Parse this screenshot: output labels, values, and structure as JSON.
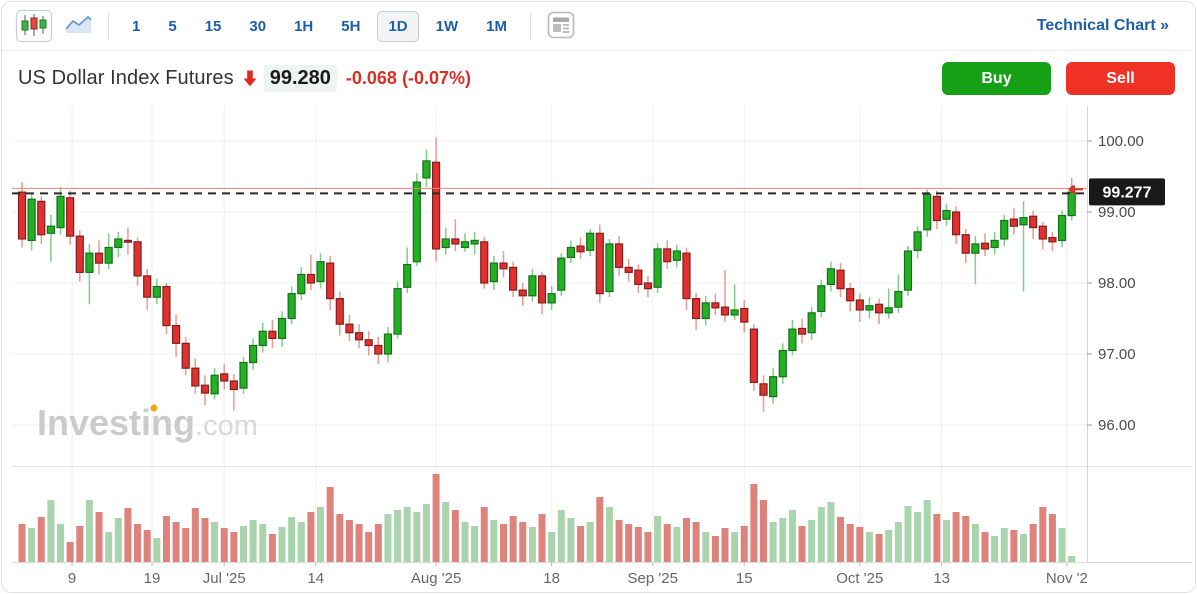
{
  "toolbar": {
    "chart_type_candlestick": {
      "name": "candlestick-chart",
      "selected": true
    },
    "chart_type_area": {
      "name": "area-chart",
      "selected": false
    },
    "intervals": [
      {
        "label": "1",
        "selected": false
      },
      {
        "label": "5",
        "selected": false
      },
      {
        "label": "15",
        "selected": false
      },
      {
        "label": "30",
        "selected": false
      },
      {
        "label": "1H",
        "selected": false
      },
      {
        "label": "5H",
        "selected": false
      },
      {
        "label": "1D",
        "selected": true
      },
      {
        "label": "1W",
        "selected": false
      },
      {
        "label": "1M",
        "selected": false
      }
    ],
    "technical_chart_label": "Technical Chart",
    "technical_chart_arrow": "»"
  },
  "header": {
    "title": "US Dollar Index Futures",
    "direction": "down",
    "price": "99.280",
    "change": "-0.068",
    "change_percent": "(-0.07%)",
    "buy_label": "Buy",
    "sell_label": "Sell"
  },
  "watermark": {
    "brand": "Investing",
    "suffix": ".com"
  },
  "colors": {
    "up_fill": "#23b123",
    "up_stroke": "#14701a",
    "up_wick": "#7fcf87",
    "down_fill": "#e13030",
    "down_stroke": "#7e211c",
    "down_wick": "#eb9a90",
    "vol_up": "#a9d4ae",
    "vol_down": "#de827c",
    "accent_blue": "#1c5fa8",
    "buy_green": "#16a016",
    "sell_red": "#f03226",
    "current_line_red": "#ef837b",
    "dashed_line": "#2a2a2a",
    "price_label_bg": "#191919",
    "grid": "#efefef",
    "axis_text": "#4a4a4a",
    "date_text": "#666666"
  },
  "chart_data": {
    "type": "candlestick",
    "symbol": "US Dollar Index Futures",
    "interval": "1D",
    "current_price": {
      "value": 99.277,
      "label": "99.277"
    },
    "y_axis": {
      "ticks": [
        {
          "label": "100.00",
          "price": 100
        },
        {
          "label": "99.00",
          "price": 99
        },
        {
          "label": "98.00",
          "price": 98
        },
        {
          "label": "97.00",
          "price": 97
        },
        {
          "label": "96.00",
          "price": 96
        }
      ],
      "range": [
        95.5,
        100.5
      ]
    },
    "x_axis": {
      "ticks": [
        {
          "label": "9",
          "i": 5.2
        },
        {
          "label": "19",
          "i": 13.5
        },
        {
          "label": "Jul '25",
          "i": 21
        },
        {
          "label": "14",
          "i": 30.5
        },
        {
          "label": "Aug '25",
          "i": 43
        },
        {
          "label": "18",
          "i": 55
        },
        {
          "label": "Sep '25",
          "i": 65.5
        },
        {
          "label": "15",
          "i": 75
        },
        {
          "label": "Oct '25",
          "i": 87
        },
        {
          "label": "13",
          "i": 95.5
        },
        {
          "label": "Nov '2",
          "i": 108.5
        }
      ]
    },
    "candles": [
      [
        99.28,
        99.42,
        98.5,
        98.62
      ],
      [
        98.6,
        99.26,
        98.46,
        99.18
      ],
      [
        99.15,
        99.22,
        98.55,
        98.68
      ],
      [
        98.7,
        98.96,
        98.3,
        98.8
      ],
      [
        98.78,
        99.35,
        98.68,
        99.22
      ],
      [
        99.2,
        99.3,
        98.54,
        98.66
      ],
      [
        98.66,
        98.74,
        98.02,
        98.15
      ],
      [
        98.15,
        98.55,
        97.7,
        98.42
      ],
      [
        98.42,
        98.6,
        98.12,
        98.28
      ],
      [
        98.28,
        98.7,
        98.2,
        98.5
      ],
      [
        98.5,
        98.72,
        98.36,
        98.62
      ],
      [
        98.6,
        98.78,
        98.4,
        98.58
      ],
      [
        98.58,
        98.64,
        97.96,
        98.1
      ],
      [
        98.1,
        98.2,
        97.62,
        97.8
      ],
      [
        97.8,
        98.06,
        97.7,
        97.95
      ],
      [
        97.95,
        98.0,
        97.28,
        97.4
      ],
      [
        97.4,
        97.56,
        96.96,
        97.15
      ],
      [
        97.15,
        97.24,
        96.7,
        96.8
      ],
      [
        96.8,
        96.94,
        96.44,
        96.55
      ],
      [
        96.56,
        96.7,
        96.28,
        96.45
      ],
      [
        96.44,
        96.8,
        96.36,
        96.7
      ],
      [
        96.72,
        96.86,
        96.5,
        96.62
      ],
      [
        96.62,
        96.72,
        96.2,
        96.5
      ],
      [
        96.52,
        96.96,
        96.44,
        96.88
      ],
      [
        96.88,
        97.22,
        96.78,
        97.12
      ],
      [
        97.12,
        97.44,
        97.02,
        97.32
      ],
      [
        97.32,
        97.48,
        97.08,
        97.22
      ],
      [
        97.22,
        97.6,
        97.1,
        97.5
      ],
      [
        97.5,
        97.95,
        97.42,
        97.85
      ],
      [
        97.85,
        98.22,
        97.76,
        98.12
      ],
      [
        98.12,
        98.4,
        97.9,
        98.0
      ],
      [
        98.02,
        98.42,
        97.92,
        98.3
      ],
      [
        98.28,
        98.38,
        97.62,
        97.78
      ],
      [
        97.78,
        97.88,
        97.26,
        97.42
      ],
      [
        97.42,
        97.55,
        97.18,
        97.3
      ],
      [
        97.3,
        97.42,
        97.08,
        97.2
      ],
      [
        97.2,
        97.32,
        96.98,
        97.12
      ],
      [
        97.12,
        97.24,
        96.86,
        97.0
      ],
      [
        97.0,
        97.38,
        96.88,
        97.28
      ],
      [
        97.28,
        98.02,
        97.22,
        97.92
      ],
      [
        97.94,
        98.5,
        97.86,
        98.26
      ],
      [
        98.3,
        99.55,
        98.24,
        99.42
      ],
      [
        99.48,
        99.88,
        99.35,
        99.72
      ],
      [
        99.7,
        100.05,
        98.3,
        98.48
      ],
      [
        98.5,
        98.78,
        98.4,
        98.62
      ],
      [
        98.62,
        98.9,
        98.45,
        98.55
      ],
      [
        98.5,
        98.7,
        98.44,
        98.58
      ],
      [
        98.55,
        98.72,
        98.4,
        98.6
      ],
      [
        98.58,
        98.65,
        97.92,
        98.0
      ],
      [
        98.02,
        98.38,
        97.9,
        98.28
      ],
      [
        98.28,
        98.45,
        98.08,
        98.2
      ],
      [
        98.22,
        98.3,
        97.8,
        97.9
      ],
      [
        97.9,
        98.0,
        97.68,
        97.82
      ],
      [
        97.82,
        98.2,
        97.74,
        98.1
      ],
      [
        98.1,
        98.16,
        97.56,
        97.72
      ],
      [
        97.72,
        97.96,
        97.62,
        97.85
      ],
      [
        97.9,
        98.42,
        97.82,
        98.35
      ],
      [
        98.36,
        98.6,
        98.28,
        98.5
      ],
      [
        98.52,
        98.64,
        98.34,
        98.44
      ],
      [
        98.46,
        98.76,
        98.38,
        98.7
      ],
      [
        98.7,
        98.82,
        97.72,
        97.85
      ],
      [
        97.88,
        98.62,
        97.8,
        98.55
      ],
      [
        98.55,
        98.66,
        98.1,
        98.22
      ],
      [
        98.22,
        98.34,
        98.02,
        98.15
      ],
      [
        98.18,
        98.26,
        97.86,
        97.98
      ],
      [
        98.0,
        98.1,
        97.8,
        97.92
      ],
      [
        97.94,
        98.56,
        97.86,
        98.48
      ],
      [
        98.48,
        98.6,
        98.2,
        98.3
      ],
      [
        98.32,
        98.54,
        98.22,
        98.45
      ],
      [
        98.42,
        98.5,
        97.62,
        97.78
      ],
      [
        97.78,
        97.86,
        97.34,
        97.5
      ],
      [
        97.5,
        97.82,
        97.4,
        97.72
      ],
      [
        97.72,
        97.85,
        97.55,
        97.65
      ],
      [
        97.66,
        98.18,
        97.45,
        97.55
      ],
      [
        97.55,
        97.98,
        97.48,
        97.62
      ],
      [
        97.64,
        97.76,
        97.3,
        97.45
      ],
      [
        97.35,
        97.42,
        96.48,
        96.6
      ],
      [
        96.58,
        96.7,
        96.18,
        96.42
      ],
      [
        96.4,
        96.8,
        96.3,
        96.68
      ],
      [
        96.68,
        97.15,
        96.58,
        97.05
      ],
      [
        97.05,
        97.48,
        96.98,
        97.35
      ],
      [
        97.36,
        97.5,
        97.15,
        97.28
      ],
      [
        97.3,
        97.66,
        97.2,
        97.58
      ],
      [
        97.6,
        98.05,
        97.52,
        97.96
      ],
      [
        97.98,
        98.3,
        97.88,
        98.2
      ],
      [
        98.18,
        98.28,
        97.8,
        97.92
      ],
      [
        97.92,
        98.0,
        97.6,
        97.75
      ],
      [
        97.76,
        97.85,
        97.45,
        97.62
      ],
      [
        97.62,
        97.8,
        97.5,
        97.68
      ],
      [
        97.7,
        97.78,
        97.42,
        97.58
      ],
      [
        97.58,
        97.92,
        97.5,
        97.65
      ],
      [
        97.66,
        98.12,
        97.58,
        97.88
      ],
      [
        97.9,
        98.52,
        97.82,
        98.45
      ],
      [
        98.46,
        98.8,
        98.35,
        98.72
      ],
      [
        98.75,
        99.32,
        98.65,
        99.25
      ],
      [
        99.22,
        99.3,
        98.76,
        98.88
      ],
      [
        98.9,
        99.12,
        98.8,
        99.02
      ],
      [
        99.0,
        99.08,
        98.55,
        98.68
      ],
      [
        98.68,
        98.76,
        98.28,
        98.42
      ],
      [
        98.42,
        98.66,
        97.98,
        98.55
      ],
      [
        98.56,
        98.7,
        98.38,
        98.48
      ],
      [
        98.5,
        98.72,
        98.4,
        98.6
      ],
      [
        98.62,
        98.96,
        98.52,
        98.88
      ],
      [
        98.9,
        99.05,
        98.68,
        98.8
      ],
      [
        98.82,
        99.15,
        97.88,
        98.92
      ],
      [
        98.94,
        99.02,
        98.62,
        98.78
      ],
      [
        98.8,
        98.86,
        98.48,
        98.62
      ],
      [
        98.64,
        98.72,
        98.45,
        98.58
      ],
      [
        98.6,
        99.02,
        98.5,
        98.95
      ],
      [
        98.95,
        99.48,
        98.88,
        99.28
      ]
    ],
    "volumes": [
      38,
      34,
      45,
      62,
      38,
      20,
      36,
      62,
      50,
      30,
      44,
      54,
      38,
      32,
      24,
      46,
      40,
      34,
      54,
      44,
      40,
      34,
      30,
      36,
      42,
      38,
      28,
      35,
      45,
      40,
      50,
      55,
      75,
      48,
      42,
      38,
      30,
      38,
      48,
      52,
      55,
      50,
      58,
      88,
      60,
      52,
      40,
      36,
      55,
      42,
      38,
      46,
      40,
      35,
      48,
      30,
      52,
      44,
      36,
      40,
      65,
      55,
      42,
      38,
      35,
      30,
      46,
      38,
      35,
      44,
      40,
      30,
      26,
      34,
      30,
      36,
      78,
      62,
      40,
      44,
      52,
      36,
      42,
      55,
      60,
      45,
      38,
      35,
      30,
      28,
      32,
      40,
      56,
      50,
      62,
      48,
      42,
      50,
      46,
      38,
      30,
      26,
      34,
      32,
      28,
      38,
      55,
      48,
      34,
      6
    ]
  }
}
